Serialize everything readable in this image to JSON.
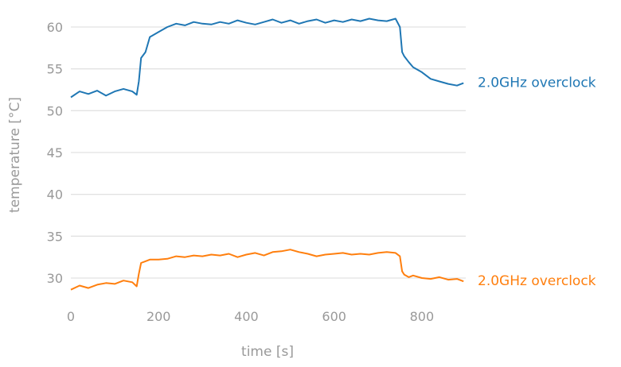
{
  "chart_data": {
    "type": "line",
    "title": "",
    "xlabel": "time [s]",
    "ylabel": "temperature [°C]",
    "xlim": [
      0,
      900
    ],
    "ylim": [
      27,
      63
    ],
    "xticks": [
      0,
      200,
      400,
      600,
      800
    ],
    "yticks": [
      30,
      35,
      40,
      45,
      50,
      55,
      60
    ],
    "grid": "horizontal",
    "legend": "inline-right",
    "series": [
      {
        "name": "2.0GHz overclock",
        "color": "#1f77b4",
        "x": [
          0,
          20,
          40,
          60,
          80,
          100,
          120,
          140,
          150,
          155,
          160,
          170,
          180,
          200,
          220,
          240,
          260,
          280,
          300,
          320,
          340,
          360,
          380,
          400,
          420,
          440,
          460,
          480,
          500,
          520,
          540,
          560,
          580,
          600,
          620,
          640,
          660,
          680,
          700,
          720,
          740,
          750,
          755,
          760,
          770,
          780,
          800,
          820,
          840,
          860,
          880,
          895
        ],
        "y": [
          51.6,
          52.3,
          52.0,
          52.4,
          51.8,
          52.3,
          52.6,
          52.3,
          51.9,
          53.5,
          56.3,
          57.0,
          58.8,
          59.4,
          60.0,
          60.4,
          60.2,
          60.6,
          60.4,
          60.3,
          60.6,
          60.4,
          60.8,
          60.5,
          60.3,
          60.6,
          60.9,
          60.5,
          60.8,
          60.4,
          60.7,
          60.9,
          60.5,
          60.8,
          60.6,
          60.9,
          60.7,
          61.0,
          60.8,
          60.7,
          61.0,
          60.0,
          57.0,
          56.5,
          55.8,
          55.2,
          54.6,
          53.8,
          53.5,
          53.2,
          53.0,
          53.3
        ]
      },
      {
        "name": "2.0GHz overclock",
        "color": "#ff7f0e",
        "x": [
          0,
          20,
          40,
          60,
          80,
          100,
          120,
          140,
          150,
          155,
          160,
          170,
          180,
          200,
          220,
          240,
          260,
          280,
          300,
          320,
          340,
          360,
          380,
          400,
          420,
          440,
          460,
          480,
          500,
          520,
          540,
          560,
          580,
          600,
          620,
          640,
          660,
          680,
          700,
          720,
          740,
          750,
          755,
          760,
          770,
          780,
          800,
          820,
          840,
          860,
          880,
          895
        ],
        "y": [
          28.6,
          29.1,
          28.8,
          29.2,
          29.4,
          29.3,
          29.7,
          29.5,
          29.0,
          30.5,
          31.8,
          32.0,
          32.2,
          32.2,
          32.3,
          32.6,
          32.5,
          32.7,
          32.6,
          32.8,
          32.7,
          32.9,
          32.5,
          32.8,
          33.0,
          32.7,
          33.1,
          33.2,
          33.4,
          33.1,
          32.9,
          32.6,
          32.8,
          32.9,
          33.0,
          32.8,
          32.9,
          32.8,
          33.0,
          33.1,
          33.0,
          32.6,
          30.8,
          30.4,
          30.1,
          30.3,
          30.0,
          29.9,
          30.1,
          29.8,
          29.9,
          29.6
        ]
      }
    ]
  }
}
